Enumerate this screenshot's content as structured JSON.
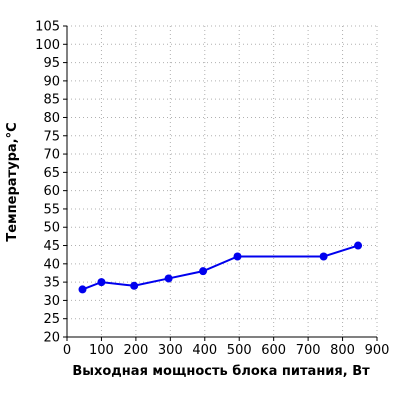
{
  "chart_data": {
    "type": "line",
    "xlabel": "Выходная мощность блока питания, Вт",
    "ylabel": "Температура,°C",
    "xlim": [
      0,
      900
    ],
    "ylim": [
      20,
      105
    ],
    "xticks": [
      0,
      100,
      200,
      300,
      400,
      500,
      600,
      700,
      800,
      900
    ],
    "yticks": [
      20,
      25,
      30,
      35,
      40,
      45,
      50,
      55,
      60,
      65,
      70,
      75,
      80,
      85,
      90,
      95,
      100,
      105
    ],
    "grid": true,
    "series": [
      {
        "x": [
          45,
          100,
          195,
          295,
          395,
          495,
          745,
          845
        ],
        "y": [
          33,
          35,
          34,
          36,
          38,
          42,
          42,
          45
        ]
      }
    ],
    "colors": {
      "series": "#0000ee",
      "grid": "#b0b0b0",
      "axis": "#000000"
    }
  }
}
